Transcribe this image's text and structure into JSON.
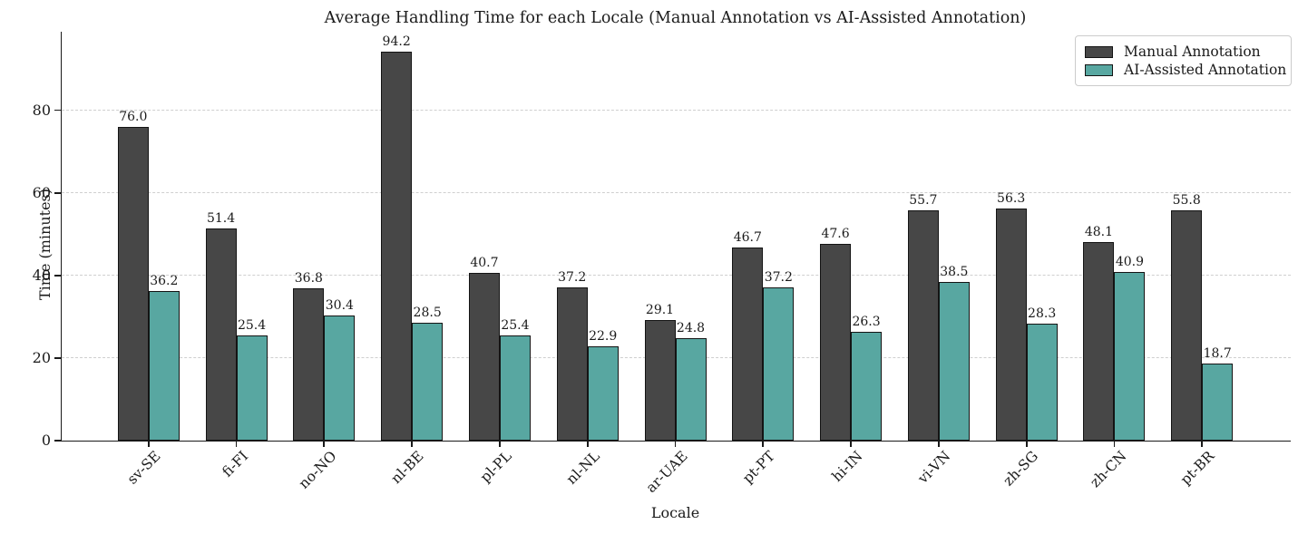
{
  "chart_data": {
    "type": "bar",
    "title": "Average Handling Time for each Locale (Manual Annotation vs AI-Assisted Annotation)",
    "xlabel": "Locale",
    "ylabel": "Time (minutes)",
    "categories": [
      "sv-SE",
      "fi-FI",
      "no-NO",
      "nl-BE",
      "pl-PL",
      "nl-NL",
      "ar-UAE",
      "pt-PT",
      "hi-IN",
      "vi-VN",
      "zh-SG",
      "zh-CN",
      "pt-BR"
    ],
    "series": [
      {
        "name": "Manual Annotation",
        "color": "#474747",
        "values": [
          76.0,
          51.4,
          36.8,
          94.2,
          40.7,
          37.2,
          29.1,
          46.7,
          47.6,
          55.7,
          56.3,
          48.1,
          55.8
        ]
      },
      {
        "name": "AI-Assisted Annotation",
        "color": "#58a7a1",
        "values": [
          36.2,
          25.4,
          30.4,
          28.5,
          25.4,
          22.9,
          24.8,
          37.2,
          26.3,
          38.5,
          28.3,
          40.9,
          18.7
        ]
      }
    ],
    "ylim": [
      0,
      99
    ],
    "yticks": [
      0,
      20,
      40,
      60,
      80
    ],
    "grid": "horizontal-dashed",
    "legend_position": "upper right",
    "bar_edge_color": "#141414",
    "value_label_format": "one-decimal"
  }
}
